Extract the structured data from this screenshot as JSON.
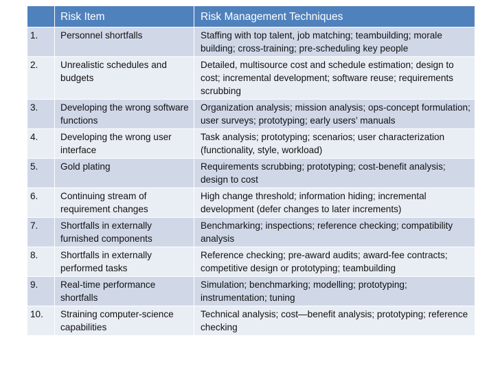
{
  "header": {
    "num": "",
    "item": "Risk Item",
    "techniques": "Risk Management Techniques"
  },
  "rows": [
    {
      "num": "1.",
      "item": "Personnel shortfalls",
      "techniques": "Staffing with top talent, job matching; teambuilding; morale building; cross-training; pre-scheduling key people"
    },
    {
      "num": "2.",
      "item": "Unrealistic schedules and budgets",
      "techniques": "Detailed, multisource cost and schedule estimation; design to cost; incremental development; software reuse; requirements scrubbing"
    },
    {
      "num": "3.",
      "item": "Developing the wrong software functions",
      "techniques": "Organization analysis; mission analysis; ops-concept formulation; user surveys; prototyping; early users’ manuals"
    },
    {
      "num": "4.",
      "item": "Developing the wrong user interface",
      "techniques": "Task analysis; prototyping; scenarios; user characterization (functionality, style, workload)"
    },
    {
      "num": "5.",
      "item": "Gold plating",
      "techniques": "Requirements scrubbing; prototyping; cost-benefit analysis; design to cost"
    },
    {
      "num": "6.",
      "item": "Continuing stream of requirement changes",
      "techniques": "High change threshold; information hiding; incremental development (defer changes to later increments)"
    },
    {
      "num": "7.",
      "item": "Shortfalls in externally furnished components",
      "techniques": "Benchmarking; inspections; reference checking; compatibility analysis"
    },
    {
      "num": "8.",
      "item": "Shortfalls in externally performed tasks",
      "techniques": "Reference checking; pre-award audits; award-fee contracts; competitive design or prototyping; teambuilding"
    },
    {
      "num": "9.",
      "item": "Real-time performance shortfalls",
      "techniques": "Simulation; benchmarking; modelling; prototyping; instrumentation; tuning"
    },
    {
      "num": "10.",
      "item": "Straining computer-science capabilities",
      "techniques": "Technical analysis; cost—benefit analysis; prototyping; reference checking"
    }
  ]
}
